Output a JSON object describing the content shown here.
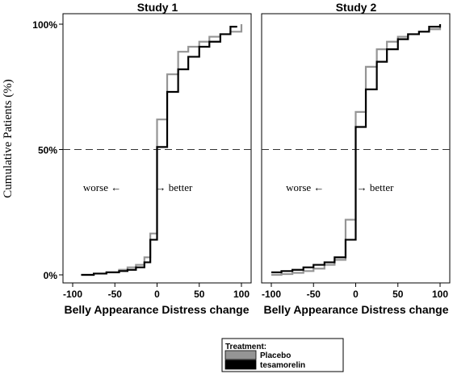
{
  "chart_data": {
    "type": "line",
    "y_axis_label": "Cumulative Patients (%)",
    "reference_line_y": 50,
    "legend": {
      "title": "Treatment:",
      "placement": "bottom-right",
      "entries": [
        {
          "label": "Placebo",
          "color": "#959595"
        },
        {
          "label": "tesamorelin",
          "color": "#000000"
        }
      ]
    },
    "panels": [
      {
        "title": "Study 1",
        "xlabel": "Belly Appearance Distress change",
        "xlim": [
          -100,
          100
        ],
        "ylim": [
          0,
          100
        ],
        "x_ticks": [
          -100,
          -50,
          0,
          50,
          100
        ],
        "y_ticks": [
          {
            "value": 0,
            "label": "0%"
          },
          {
            "value": 50,
            "label": "50%"
          },
          {
            "value": 100,
            "label": "100%"
          }
        ],
        "annotations": [
          {
            "text": "worse ←",
            "x": -65,
            "y": 35
          },
          {
            "text": "→ better",
            "x": 20,
            "y": 35
          }
        ],
        "series": [
          {
            "name": "Placebo",
            "steps": [
              [
                -90,
                0
              ],
              [
                -75,
                0.5
              ],
              [
                -60,
                1
              ],
              [
                -45,
                2
              ],
              [
                -35,
                3
              ],
              [
                -25,
                4
              ],
              [
                -15,
                7
              ],
              [
                -8,
                16.5
              ],
              [
                0,
                62
              ],
              [
                12,
                80
              ],
              [
                25,
                89
              ],
              [
                37,
                91
              ],
              [
                50,
                93
              ],
              [
                62,
                95
              ],
              [
                75,
                96
              ],
              [
                87,
                97
              ],
              [
                100,
                100
              ]
            ]
          },
          {
            "name": "tesamorelin",
            "steps": [
              [
                -90,
                0
              ],
              [
                -75,
                0.5
              ],
              [
                -60,
                1
              ],
              [
                -45,
                1.5
              ],
              [
                -35,
                2
              ],
              [
                -25,
                3
              ],
              [
                -15,
                5
              ],
              [
                -8,
                14
              ],
              [
                0,
                51
              ],
              [
                12,
                73
              ],
              [
                25,
                82
              ],
              [
                37,
                87
              ],
              [
                50,
                91
              ],
              [
                62,
                93
              ],
              [
                75,
                96
              ],
              [
                87,
                99
              ]
            ]
          }
        ]
      },
      {
        "title": "Study 2",
        "xlabel": "Belly Appearance Distress change",
        "xlim": [
          -100,
          100
        ],
        "ylim": [
          0,
          100
        ],
        "x_ticks": [
          -100,
          -50,
          0,
          50,
          100
        ],
        "y_ticks": [],
        "annotations": [
          {
            "text": "worse ←",
            "x": -60,
            "y": 35
          },
          {
            "text": "→ better",
            "x": 23,
            "y": 35
          }
        ],
        "series": [
          {
            "name": "Placebo",
            "steps": [
              [
                -100,
                0
              ],
              [
                -88,
                0.3
              ],
              [
                -75,
                0.8
              ],
              [
                -62,
                1.5
              ],
              [
                -50,
                2.5
              ],
              [
                -37,
                4
              ],
              [
                -25,
                6
              ],
              [
                -12,
                22
              ],
              [
                0,
                65
              ],
              [
                12,
                83
              ],
              [
                25,
                90
              ],
              [
                37,
                93
              ],
              [
                50,
                95
              ],
              [
                62,
                96
              ],
              [
                75,
                97
              ],
              [
                87,
                98
              ],
              [
                100,
                100
              ]
            ]
          },
          {
            "name": "tesamorelin",
            "steps": [
              [
                -100,
                1
              ],
              [
                -88,
                1.5
              ],
              [
                -75,
                2
              ],
              [
                -62,
                3
              ],
              [
                -50,
                4
              ],
              [
                -37,
                5
              ],
              [
                -25,
                7
              ],
              [
                -12,
                14
              ],
              [
                0,
                59
              ],
              [
                12,
                74
              ],
              [
                25,
                85
              ],
              [
                37,
                90
              ],
              [
                50,
                94
              ],
              [
                62,
                96
              ],
              [
                75,
                97
              ],
              [
                87,
                99
              ],
              [
                100,
                100
              ]
            ]
          }
        ]
      }
    ]
  }
}
